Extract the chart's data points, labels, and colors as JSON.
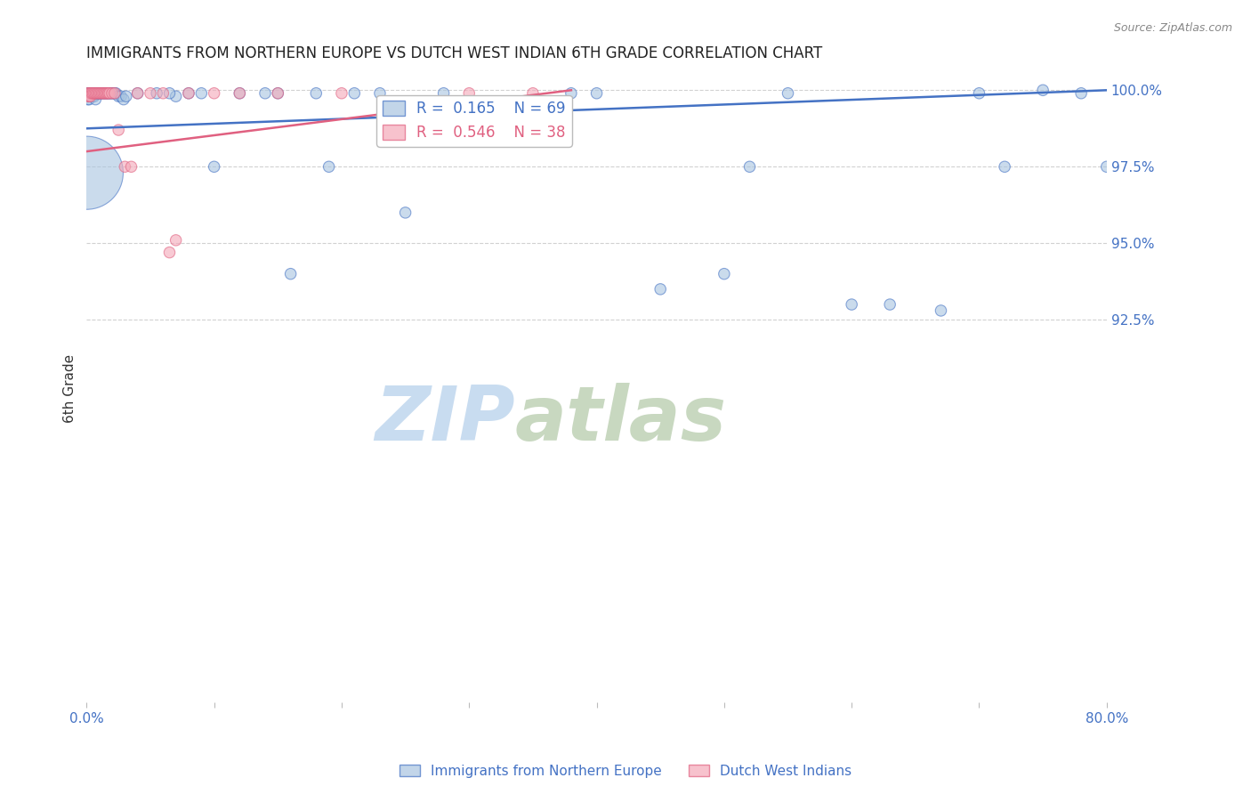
{
  "title": "IMMIGRANTS FROM NORTHERN EUROPE VS DUTCH WEST INDIAN 6TH GRADE CORRELATION CHART",
  "source": "Source: ZipAtlas.com",
  "ylabel": "6th Grade",
  "xlim": [
    0.0,
    0.8
  ],
  "ylim": [
    0.8,
    1.005
  ],
  "yticks": [
    0.925,
    0.95,
    0.975,
    1.0
  ],
  "ytick_labels": [
    "92.5%",
    "95.0%",
    "97.5%",
    "100.0%"
  ],
  "xticks": [
    0.0,
    0.1,
    0.2,
    0.3,
    0.4,
    0.5,
    0.6,
    0.7,
    0.8
  ],
  "xtick_labels": [
    "0.0%",
    "",
    "",
    "",
    "",
    "",
    "",
    "",
    "80.0%"
  ],
  "blue_label": "Immigrants from Northern Europe",
  "pink_label": "Dutch West Indians",
  "blue_R": 0.165,
  "blue_N": 69,
  "pink_R": 0.546,
  "pink_N": 38,
  "blue_color": "#A8C4E0",
  "pink_color": "#F4A8B8",
  "blue_line_color": "#4472C4",
  "pink_line_color": "#E06080",
  "title_color": "#222222",
  "axis_color": "#4472C4",
  "watermark_zip_color": "#C8DCF0",
  "watermark_atlas_color": "#C8D8C0",
  "background_color": "#FFFFFF",
  "blue_scatter_x": [
    0.001,
    0.001,
    0.001,
    0.002,
    0.002,
    0.002,
    0.003,
    0.003,
    0.004,
    0.004,
    0.005,
    0.005,
    0.006,
    0.006,
    0.007,
    0.007,
    0.008,
    0.009,
    0.01,
    0.011,
    0.012,
    0.013,
    0.014,
    0.015,
    0.016,
    0.017,
    0.018,
    0.019,
    0.02,
    0.021,
    0.022,
    0.023,
    0.025,
    0.027,
    0.029,
    0.031,
    0.04,
    0.055,
    0.07,
    0.12,
    0.14,
    0.19,
    0.21,
    0.3,
    0.38,
    0.4,
    0.52,
    0.55,
    0.6,
    0.7,
    0.72,
    0.75,
    0.065,
    0.08,
    0.09,
    0.1,
    0.15,
    0.16,
    0.18,
    0.23,
    0.25,
    0.28,
    0.45,
    0.5,
    0.63,
    0.67,
    0.78,
    0.8,
    0.0
  ],
  "blue_scatter_y": [
    0.999,
    0.998,
    0.997,
    0.999,
    0.998,
    0.997,
    0.999,
    0.998,
    0.999,
    0.998,
    0.999,
    0.998,
    0.999,
    0.998,
    0.999,
    0.997,
    0.999,
    0.999,
    0.999,
    0.999,
    0.999,
    0.999,
    0.999,
    0.999,
    0.999,
    0.999,
    0.999,
    0.999,
    0.999,
    0.999,
    0.999,
    0.999,
    0.998,
    0.998,
    0.997,
    0.998,
    0.999,
    0.999,
    0.998,
    0.999,
    0.999,
    0.975,
    0.999,
    0.985,
    0.999,
    0.999,
    0.975,
    0.999,
    0.93,
    0.999,
    0.975,
    1.0,
    0.999,
    0.999,
    0.999,
    0.975,
    0.999,
    0.94,
    0.999,
    0.999,
    0.96,
    0.999,
    0.935,
    0.94,
    0.93,
    0.928,
    0.999,
    0.975,
    0.973
  ],
  "blue_scatter_size": [
    80,
    80,
    80,
    80,
    80,
    80,
    80,
    80,
    80,
    80,
    80,
    80,
    80,
    80,
    80,
    80,
    80,
    80,
    80,
    80,
    80,
    80,
    80,
    80,
    80,
    80,
    80,
    80,
    80,
    80,
    80,
    80,
    80,
    80,
    80,
    80,
    80,
    80,
    80,
    80,
    80,
    80,
    80,
    80,
    80,
    80,
    80,
    80,
    80,
    80,
    80,
    80,
    80,
    80,
    80,
    80,
    80,
    80,
    80,
    80,
    80,
    80,
    80,
    80,
    80,
    80,
    80,
    80,
    3500
  ],
  "pink_scatter_x": [
    0.001,
    0.001,
    0.002,
    0.002,
    0.003,
    0.003,
    0.004,
    0.005,
    0.006,
    0.007,
    0.008,
    0.009,
    0.01,
    0.011,
    0.012,
    0.013,
    0.014,
    0.015,
    0.016,
    0.017,
    0.018,
    0.02,
    0.022,
    0.025,
    0.03,
    0.035,
    0.04,
    0.05,
    0.06,
    0.065,
    0.07,
    0.08,
    0.1,
    0.12,
    0.15,
    0.2,
    0.3,
    0.35
  ],
  "pink_scatter_y": [
    0.999,
    0.998,
    0.999,
    0.998,
    0.999,
    0.998,
    0.999,
    0.999,
    0.999,
    0.999,
    0.999,
    0.999,
    0.999,
    0.999,
    0.999,
    0.999,
    0.999,
    0.999,
    0.999,
    0.999,
    0.999,
    0.999,
    0.999,
    0.987,
    0.975,
    0.975,
    0.999,
    0.999,
    0.999,
    0.947,
    0.951,
    0.999,
    0.999,
    0.999,
    0.999,
    0.999,
    0.999,
    0.999
  ],
  "pink_scatter_size": [
    80,
    80,
    80,
    80,
    80,
    80,
    80,
    80,
    80,
    80,
    80,
    80,
    80,
    80,
    80,
    80,
    80,
    80,
    80,
    80,
    80,
    80,
    80,
    80,
    80,
    80,
    80,
    80,
    80,
    80,
    80,
    80,
    80,
    80,
    80,
    80,
    80,
    80
  ],
  "blue_trendline_x": [
    0.0,
    0.8
  ],
  "blue_trendline_y": [
    0.9875,
    1.0
  ],
  "pink_trendline_x": [
    0.0,
    0.38
  ],
  "pink_trendline_y": [
    0.98,
    1.0
  ]
}
